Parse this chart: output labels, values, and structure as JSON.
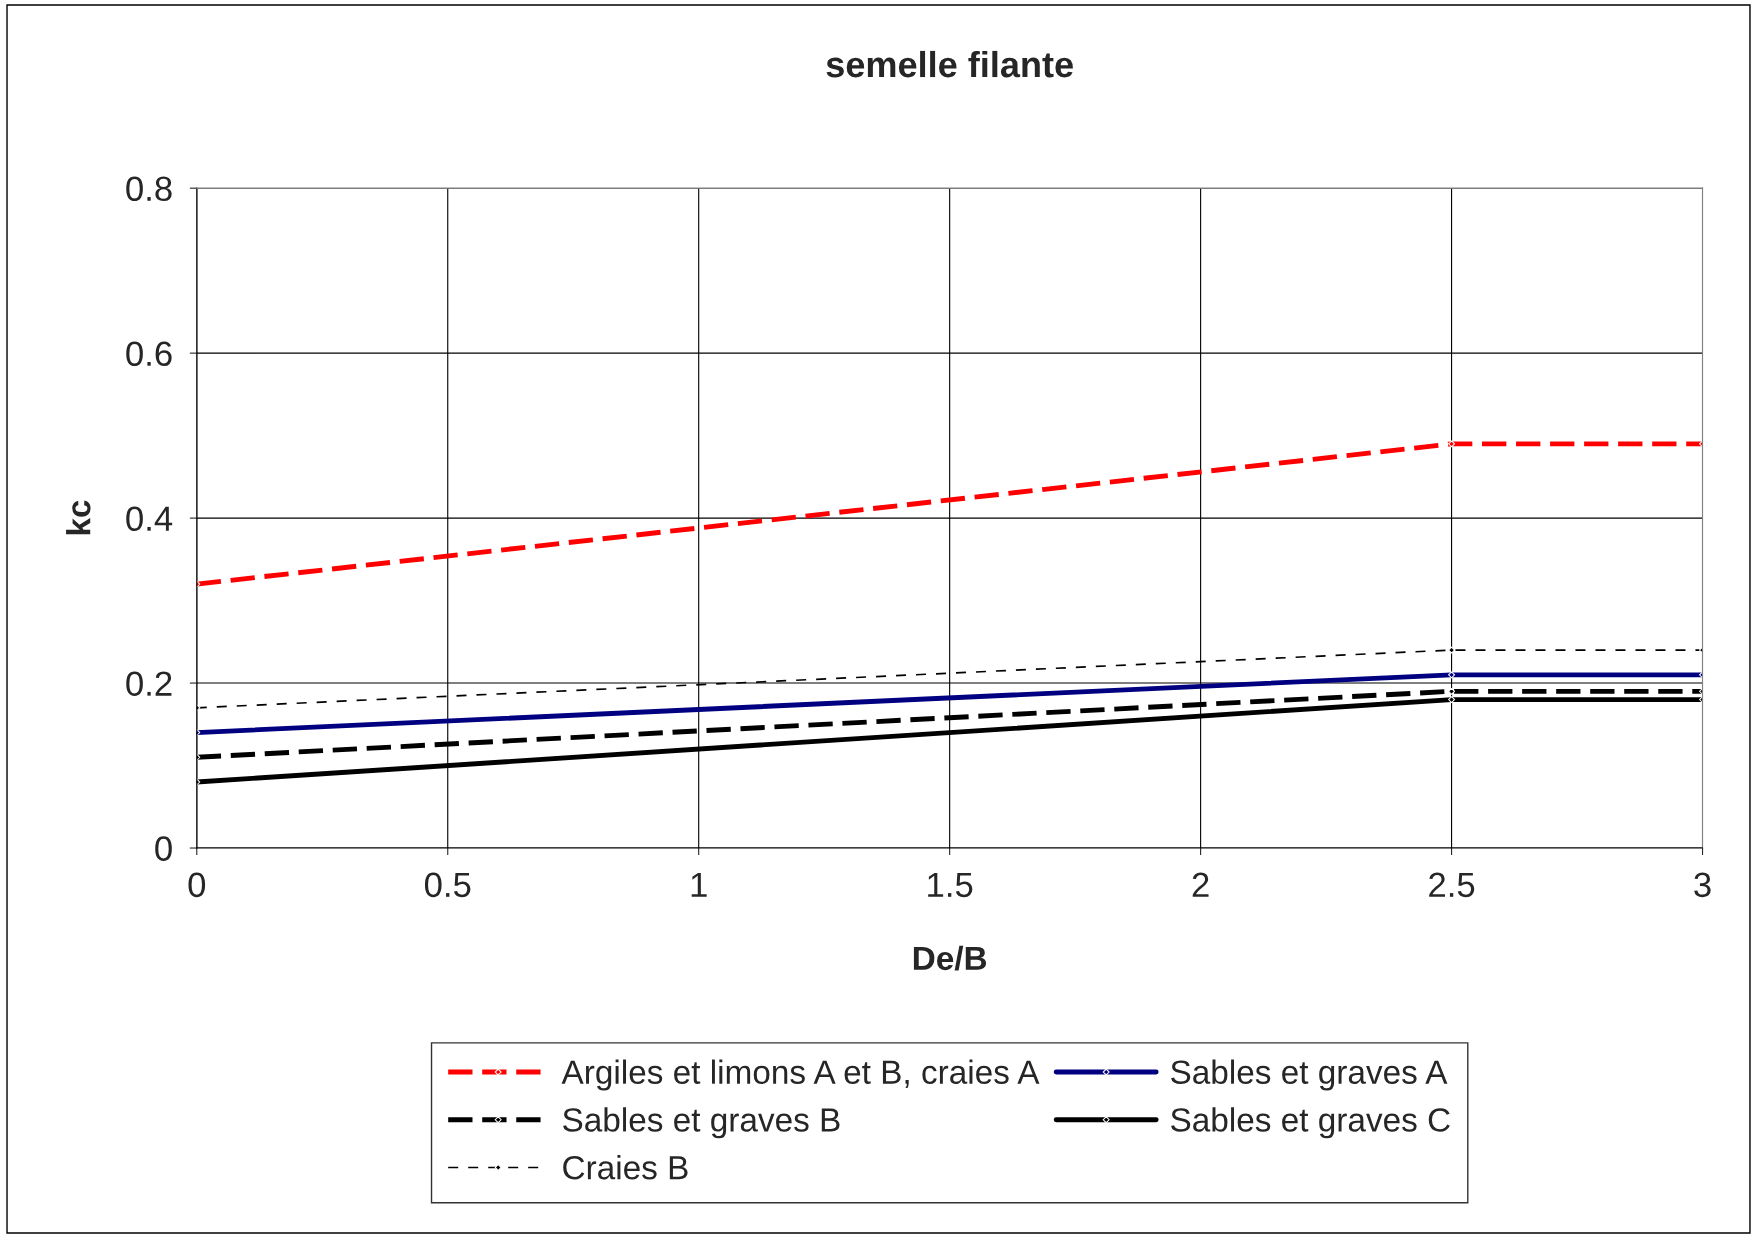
{
  "chart_data": {
    "type": "line",
    "title": "semelle filante",
    "xlabel": "De/B",
    "ylabel": "kc",
    "x": [
      0,
      2.5,
      3
    ],
    "series": [
      {
        "name": "Argiles et limons A et B, craies A",
        "color": "#ff0000",
        "line_style": "dashed",
        "values": [
          0.32,
          0.49,
          0.49
        ]
      },
      {
        "name": "Sables et graves A",
        "color": "#000080",
        "line_style": "solid",
        "values": [
          0.14,
          0.21,
          0.21
        ]
      },
      {
        "name": "Sables et graves B",
        "color": "#000000",
        "line_style": "dashed",
        "values": [
          0.11,
          0.19,
          0.19
        ]
      },
      {
        "name": "Sables et graves C",
        "color": "#000000",
        "line_style": "solid",
        "values": [
          0.08,
          0.18,
          0.18
        ]
      },
      {
        "name": "Craies B",
        "color": "#000000",
        "line_style": "dashed",
        "values": [
          0.17,
          0.24,
          0.24
        ]
      }
    ],
    "xlim": [
      0,
      3
    ],
    "xticks": [
      0,
      0.5,
      1,
      1.5,
      2,
      2.5,
      3
    ],
    "ylim": [
      0,
      0.8
    ],
    "yticks": [
      0,
      0.2,
      0.4,
      0.6,
      0.8
    ],
    "grid": true,
    "legend": "bottom",
    "marker": "diamond"
  }
}
